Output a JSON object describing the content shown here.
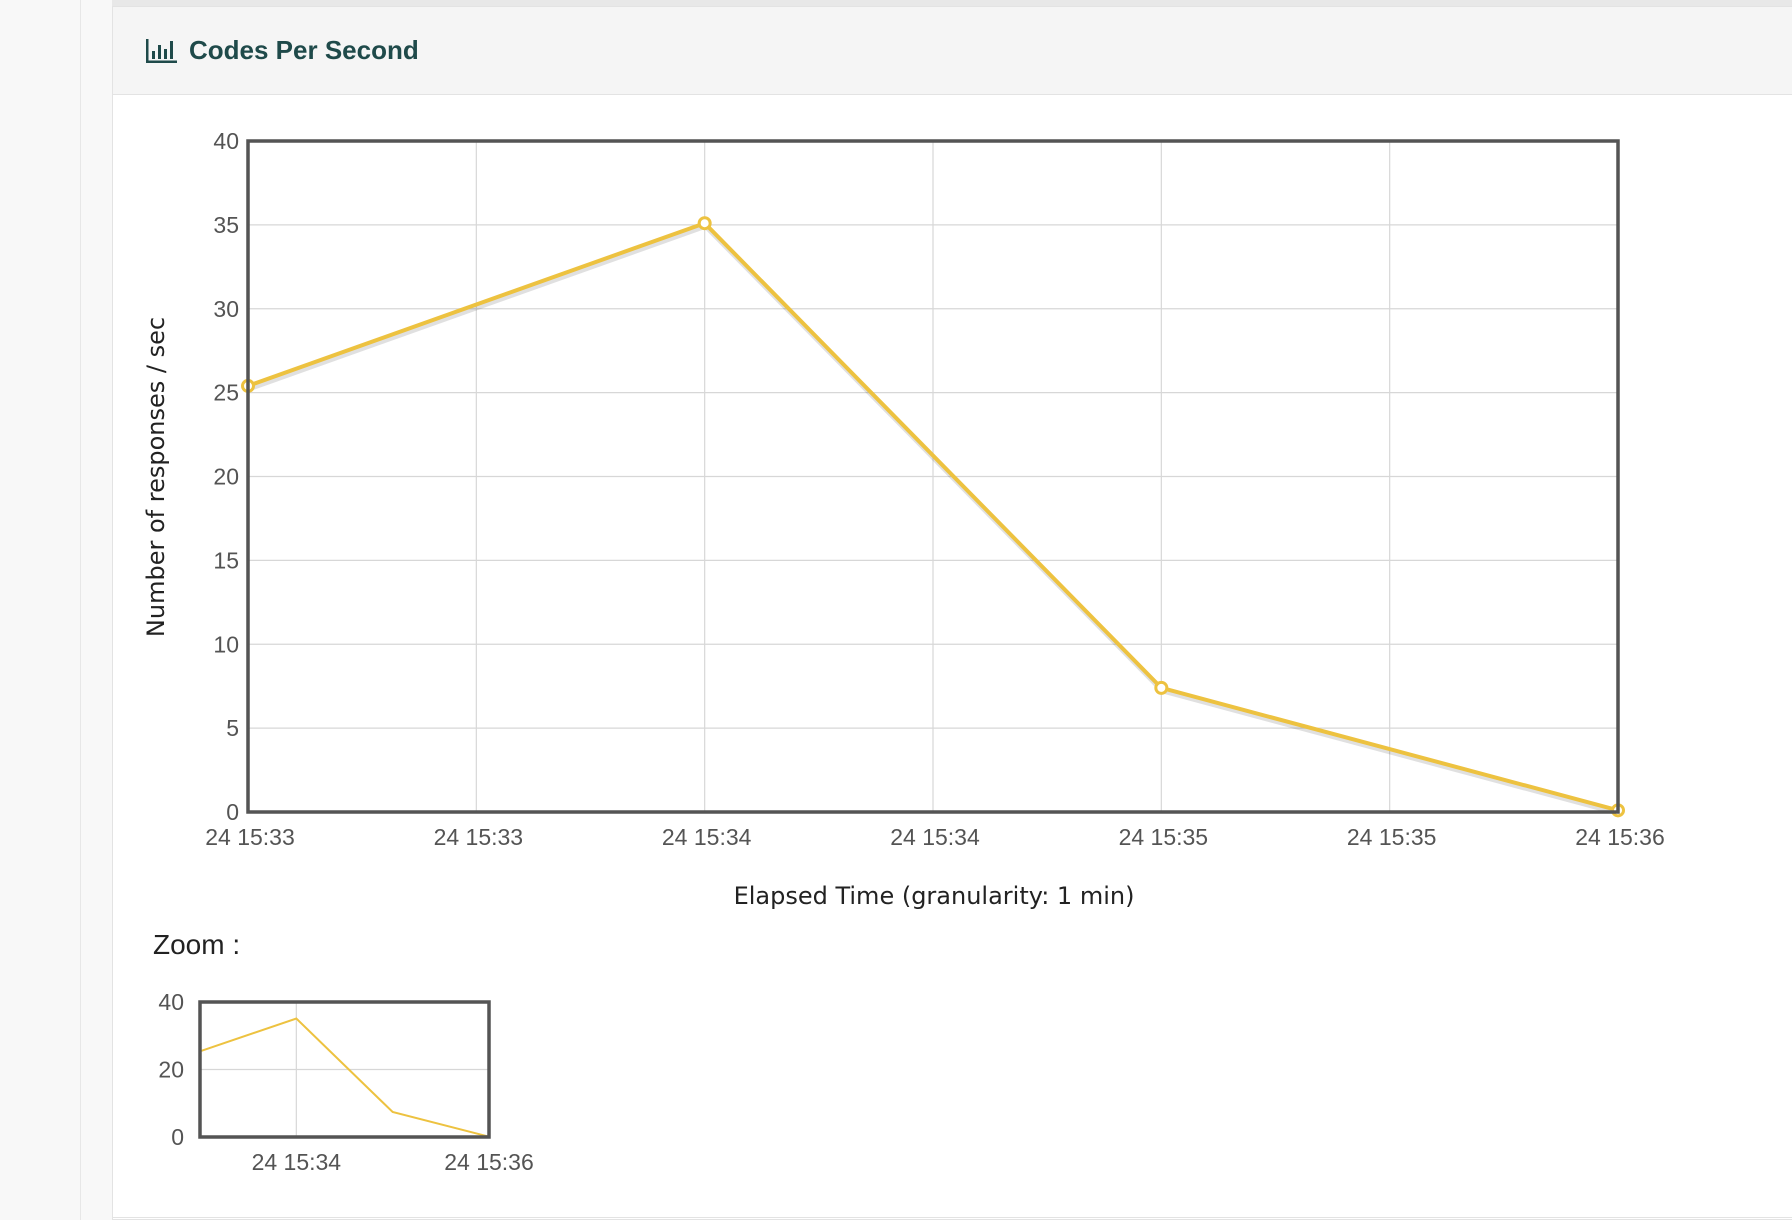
{
  "panel": {
    "title": "Codes Per Second",
    "icon": "bar-chart-icon"
  },
  "colors": {
    "series": "#edc240",
    "frame": "#545454",
    "grid": "#d7d7d7",
    "heading_text": "#1f4a4a"
  },
  "chart_data": [
    {
      "type": "line",
      "xlabel": "Elapsed Time (granularity: 1 min)",
      "ylabel": "Number of responses / sec",
      "x_ticks": [
        "24 15:33",
        "24 15:33",
        "24 15:34",
        "24 15:34",
        "24 15:35",
        "24 15:35",
        "24 15:36"
      ],
      "y_ticks": [
        "0",
        "5",
        "10",
        "15",
        "20",
        "25",
        "30",
        "35",
        "40"
      ],
      "ylim": [
        0,
        40
      ],
      "xlim_minutes": [
        0,
        3
      ],
      "grid": true,
      "series": [
        {
          "points": [
            {
              "x": "24 15:33",
              "y": 25.4
            },
            {
              "x": "24 15:34",
              "y": 35.1
            },
            {
              "x": "24 15:35",
              "y": 7.4
            },
            {
              "x": "24 15:36",
              "y": 0.1
            }
          ]
        }
      ]
    },
    {
      "type": "line",
      "label": "Zoom :",
      "x_ticks": [
        "24 15:34",
        "24 15:36"
      ],
      "y_ticks": [
        "0",
        "20",
        "40"
      ],
      "ylim": [
        0,
        40
      ],
      "grid": true,
      "series": [
        {
          "points": [
            {
              "x": "24 15:33",
              "y": 25.4
            },
            {
              "x": "24 15:34",
              "y": 35.1
            },
            {
              "x": "24 15:35",
              "y": 7.4
            },
            {
              "x": "24 15:36",
              "y": 0.1
            }
          ]
        }
      ]
    }
  ]
}
